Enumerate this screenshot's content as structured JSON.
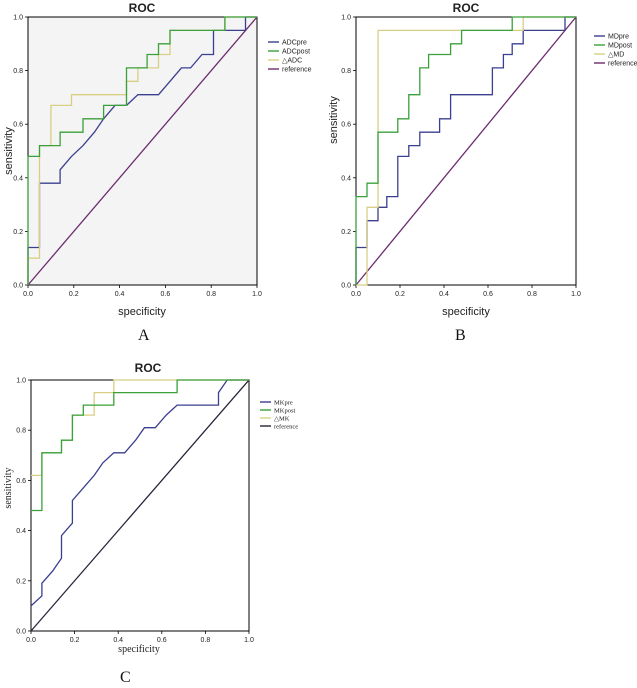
{
  "figure": {
    "panel_letters": [
      "A",
      "B",
      "C"
    ]
  },
  "chart_data": [
    {
      "type": "line",
      "panel": "A",
      "title": "ROC",
      "xlabel": "specificity",
      "ylabel": "sensitivity",
      "xlim": [
        0,
        1
      ],
      "ylim": [
        0,
        1
      ],
      "xticks": [
        "0.0",
        "0.2",
        "0.4",
        "0.6",
        "0.8",
        "1.0"
      ],
      "yticks": [
        "0.0",
        "0.2",
        "0.4",
        "0.6",
        "0.8",
        "1.0"
      ],
      "legend_position": "top-right",
      "series": [
        {
          "name": "ADCpre",
          "color": "#3b3f8f",
          "x": [
            0,
            0,
            0.05,
            0.05,
            0.14,
            0.14,
            0.19,
            0.24,
            0.29,
            0.33,
            0.38,
            0.43,
            0.48,
            0.52,
            0.57,
            0.62,
            0.67,
            0.71,
            0.76,
            0.81,
            0.81,
            0.95,
            0.95,
            1.0
          ],
          "y": [
            0,
            0.14,
            0.14,
            0.38,
            0.38,
            0.43,
            0.48,
            0.52,
            0.57,
            0.62,
            0.67,
            0.67,
            0.71,
            0.71,
            0.71,
            0.76,
            0.81,
            0.81,
            0.86,
            0.86,
            0.95,
            0.95,
            1.0,
            1.0
          ]
        },
        {
          "name": "ADCpost",
          "color": "#3aa03a",
          "x": [
            0,
            0,
            0.05,
            0.1,
            0.14,
            0.24,
            0.29,
            0.33,
            0.38,
            0.43,
            0.43,
            0.48,
            0.52,
            0.57,
            0.62,
            0.81,
            0.86,
            1.0
          ],
          "y": [
            0,
            0.48,
            0.52,
            0.52,
            0.57,
            0.62,
            0.62,
            0.67,
            0.67,
            0.67,
            0.81,
            0.81,
            0.86,
            0.9,
            0.95,
            0.95,
            1.0,
            1.0
          ],
          "step": "hv"
        },
        {
          "name": "△ADC",
          "color": "#d8cf84",
          "x": [
            0,
            0,
            0.05,
            0.05,
            0.1,
            0.14,
            0.19,
            0.24,
            0.33,
            0.38,
            0.43,
            0.48,
            0.57,
            0.62,
            0.67,
            0.71,
            0.86,
            1.0
          ],
          "y": [
            0,
            0.1,
            0.1,
            0.52,
            0.67,
            0.67,
            0.71,
            0.71,
            0.71,
            0.71,
            0.76,
            0.81,
            0.86,
            0.95,
            0.95,
            0.95,
            1.0,
            1.0
          ],
          "step": "hv"
        },
        {
          "name": "reference",
          "color": "#6d2c6d",
          "x": [
            0,
            1
          ],
          "y": [
            0,
            1
          ]
        }
      ]
    },
    {
      "type": "line",
      "panel": "B",
      "title": "ROC",
      "xlabel": "specificity",
      "ylabel": "sensitivity",
      "xlim": [
        0,
        1
      ],
      "ylim": [
        0,
        1
      ],
      "xticks": [
        "0.0",
        "0.2",
        "0.4",
        "0.6",
        "0.8",
        "1.0"
      ],
      "yticks": [
        "0.0",
        "0.2",
        "0.4",
        "0.6",
        "0.8",
        "1.0"
      ],
      "legend_position": "top-right",
      "series": [
        {
          "name": "MDpre",
          "color": "#3b3f8f",
          "x": [
            0,
            0,
            0.05,
            0.05,
            0.1,
            0.14,
            0.19,
            0.24,
            0.29,
            0.33,
            0.38,
            0.43,
            0.48,
            0.57,
            0.62,
            0.67,
            0.71,
            0.76,
            0.81,
            0.95,
            1.0
          ],
          "y": [
            0,
            0.14,
            0.14,
            0.24,
            0.29,
            0.33,
            0.48,
            0.52,
            0.57,
            0.57,
            0.62,
            0.71,
            0.71,
            0.71,
            0.81,
            0.86,
            0.9,
            0.95,
            0.95,
            1.0,
            1.0
          ],
          "step": "hv"
        },
        {
          "name": "MDpost",
          "color": "#3aa03a",
          "x": [
            0,
            0,
            0.05,
            0.1,
            0.1,
            0.19,
            0.24,
            0.29,
            0.33,
            0.38,
            0.43,
            0.48,
            0.67,
            0.71,
            0.71,
            1.0
          ],
          "y": [
            0,
            0.33,
            0.38,
            0.38,
            0.57,
            0.62,
            0.71,
            0.81,
            0.86,
            0.86,
            0.9,
            0.95,
            0.95,
            0.95,
            1.0,
            1.0
          ],
          "step": "hv"
        },
        {
          "name": "△MD",
          "color": "#d8cf84",
          "x": [
            0,
            0.05,
            0.05,
            0.1,
            0.1,
            0.71,
            0.76,
            1.0
          ],
          "y": [
            0,
            0,
            0.29,
            0.29,
            0.95,
            0.95,
            1.0,
            1.0
          ],
          "step": "hv"
        },
        {
          "name": "reference",
          "color": "#6d2c6d",
          "x": [
            0,
            1
          ],
          "y": [
            0,
            1
          ]
        }
      ]
    },
    {
      "type": "line",
      "panel": "C",
      "title": "ROC",
      "xlabel": "specificity",
      "ylabel": "sensitivity",
      "xlim": [
        0,
        1
      ],
      "ylim": [
        0,
        1
      ],
      "xticks": [
        "0.0",
        "0.2",
        "0.4",
        "0.6",
        "0.8",
        "1.0"
      ],
      "yticks": [
        "0.0",
        "0.2",
        "0.4",
        "0.6",
        "0.8",
        "1.0"
      ],
      "legend_position": "top-right",
      "series": [
        {
          "name": "MKpre",
          "color": "#3b3f8f",
          "x": [
            0,
            0.05,
            0.05,
            0.1,
            0.14,
            0.14,
            0.19,
            0.19,
            0.24,
            0.29,
            0.33,
            0.38,
            0.43,
            0.48,
            0.52,
            0.57,
            0.62,
            0.67,
            0.71,
            0.81,
            0.86,
            0.86,
            0.9,
            1.0
          ],
          "y": [
            0.1,
            0.14,
            0.19,
            0.24,
            0.29,
            0.38,
            0.43,
            0.52,
            0.57,
            0.62,
            0.67,
            0.71,
            0.71,
            0.76,
            0.81,
            0.81,
            0.86,
            0.9,
            0.9,
            0.9,
            0.9,
            0.95,
            1.0,
            1.0
          ]
        },
        {
          "name": "MKpost",
          "color": "#3aa03a",
          "x": [
            0,
            0.05,
            0.05,
            0.14,
            0.19,
            0.24,
            0.29,
            0.33,
            0.38,
            0.43,
            0.48,
            0.52,
            0.57,
            0.62,
            0.67,
            1.0
          ],
          "y": [
            0.48,
            0.48,
            0.71,
            0.76,
            0.86,
            0.9,
            0.9,
            0.9,
            0.95,
            0.95,
            0.95,
            0.95,
            0.95,
            0.95,
            1.0,
            1.0
          ],
          "step": "hv"
        },
        {
          "name": "△MK",
          "color": "#d8cf84",
          "x": [
            0,
            0.05,
            0.1,
            0.14,
            0.19,
            0.24,
            0.29,
            0.33,
            0.38,
            0.43,
            0.48,
            1.0
          ],
          "y": [
            0.62,
            0.71,
            0.71,
            0.76,
            0.86,
            0.86,
            0.95,
            0.95,
            1.0,
            1.0,
            1.0,
            1.0
          ],
          "step": "hv"
        },
        {
          "name": "reference",
          "color": "#27243a",
          "x": [
            0,
            1
          ],
          "y": [
            0,
            1
          ]
        }
      ]
    }
  ]
}
